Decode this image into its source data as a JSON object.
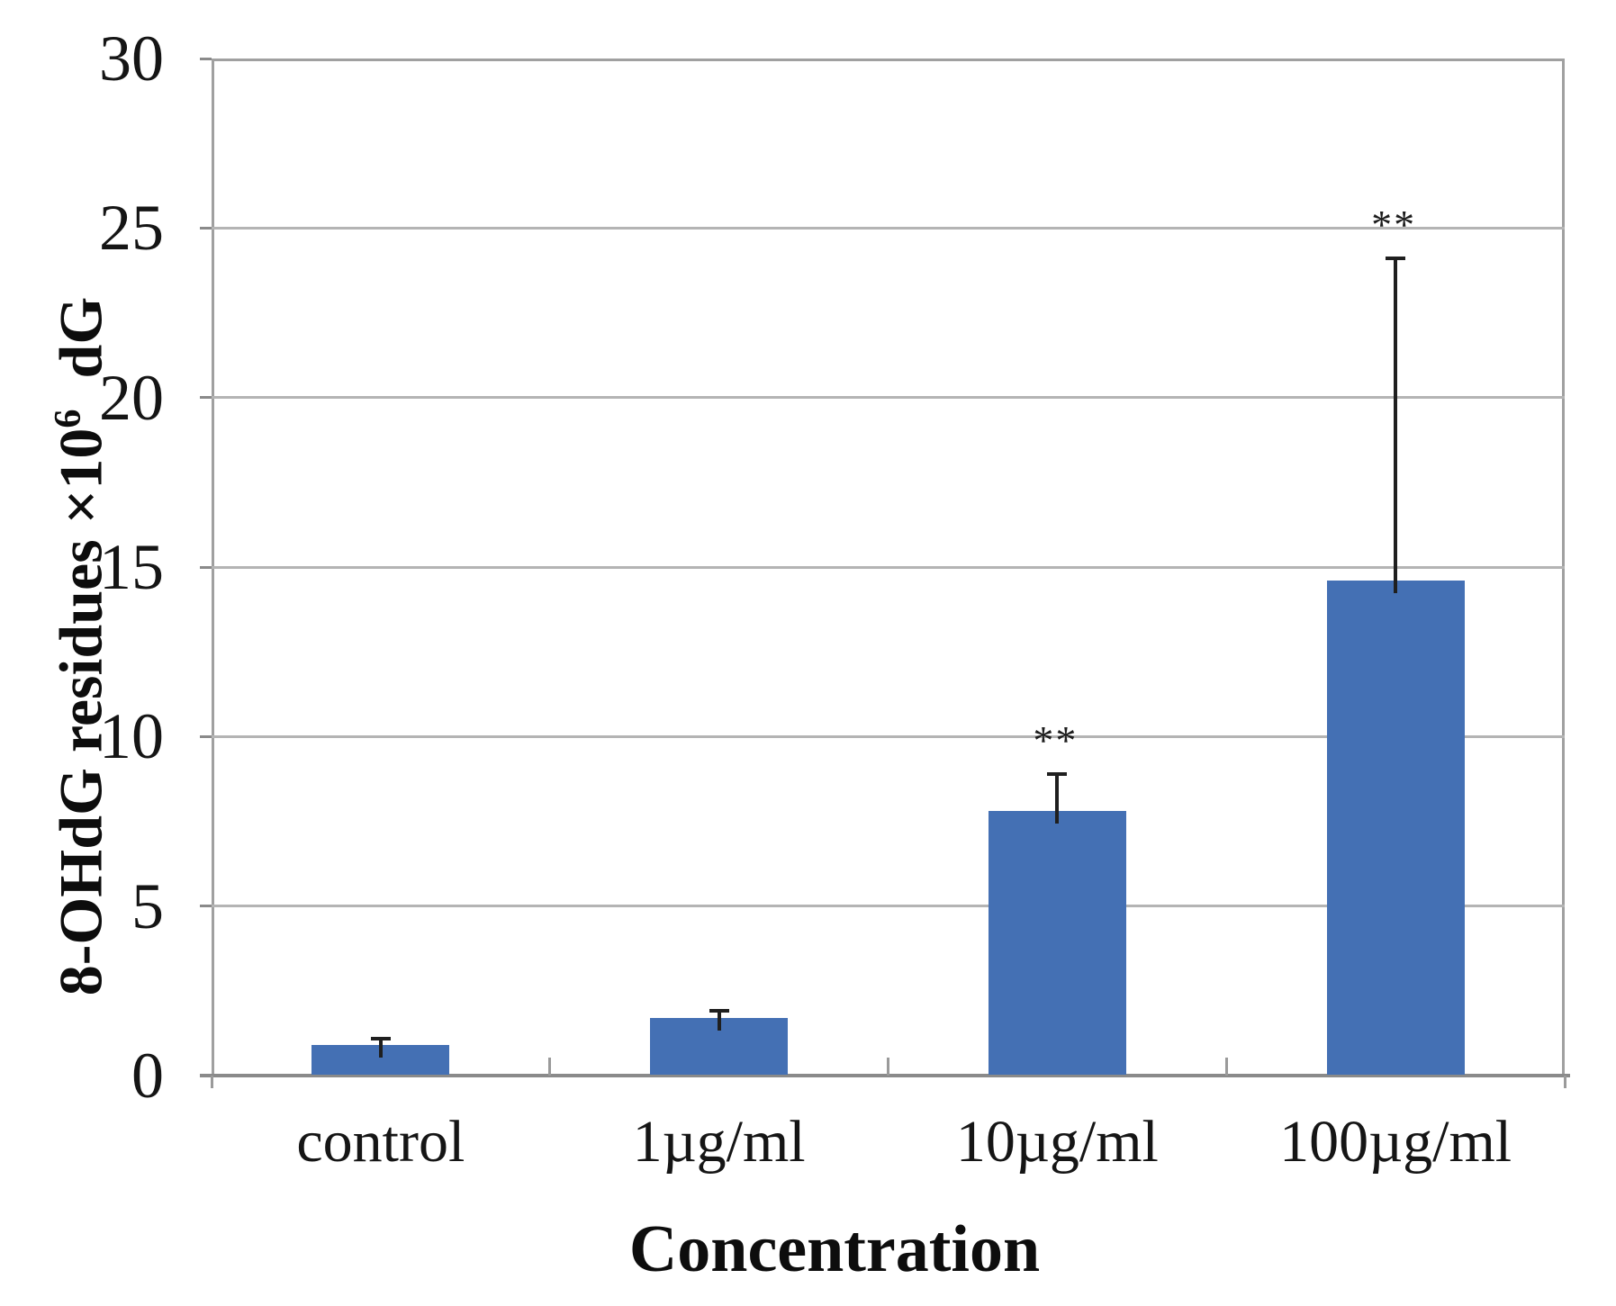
{
  "chart_data": {
    "type": "bar",
    "title": "",
    "categories": [
      "control",
      "1µg/ml",
      "10µg/ml",
      "100µg/ml"
    ],
    "values": [
      0.9,
      1.7,
      7.8,
      14.6
    ],
    "errors_up": [
      0.2,
      0.2,
      1.1,
      9.5
    ],
    "significance": [
      "",
      "",
      "**",
      "**"
    ],
    "xlabel": "Concentration",
    "ylabel": {
      "prefix": "8-OHdG residues ×10",
      "superscript": "6",
      "suffix": "  dG"
    },
    "ylim": [
      0,
      30
    ],
    "yticks": [
      0,
      5,
      10,
      15,
      20,
      25,
      30
    ],
    "grid": "horizontal",
    "legend": "none",
    "colors": {
      "bar": "#4470b4",
      "error_bar": "#1f1f1f",
      "gridline": "#b4b4b4",
      "plot_border": "#a0a0a0",
      "axis_line": "#8a8a8a",
      "text": "#111111",
      "background": "#ffffff"
    }
  }
}
